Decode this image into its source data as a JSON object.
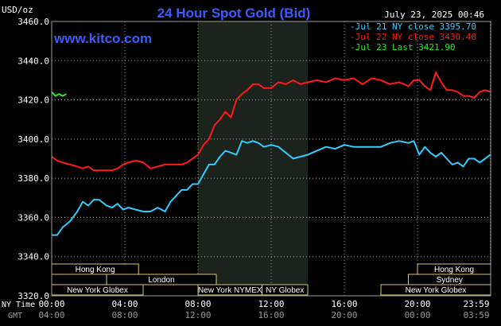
{
  "header": {
    "title": "24 Hour Spot Gold (Bid)",
    "units": "USD/oz",
    "site": "www.kitco.com",
    "timestamp": "July 23, 2025 00:46"
  },
  "legend": [
    {
      "label": "-Jul 21 NY close 3395.70",
      "color": "#33ccff"
    },
    {
      "label": "-Jul 22 NY close 3430.40",
      "color": "#ff1a1a"
    },
    {
      "label": "-Jul 23 Last 3421.90",
      "color": "#22ee22"
    }
  ],
  "colors": {
    "background": "#000000",
    "plot_bg": "#000000",
    "shade": "#1c221c",
    "grid": "#9aa09a",
    "text": "#ffffff",
    "title": "#3a5cff",
    "session_fill": "#000000",
    "session_border": "#d8c86a"
  },
  "axis_titles": {
    "ny_time": "NY Time",
    "gmt": "GMT"
  },
  "sessions": [
    {
      "label": "Hong Kong",
      "start": 0.0,
      "end": 4.75,
      "row": 0
    },
    {
      "label": "London",
      "start": 3.0,
      "end": 9.0,
      "row": 1
    },
    {
      "label": "New York Globex",
      "start": 0.0,
      "end": 5.0,
      "row": 2
    },
    {
      "label": "New York NYMEX",
      "start": 8.0,
      "end": 11.5,
      "row": 2
    },
    {
      "label": "NY Globex",
      "start": 11.5,
      "end": 14.0,
      "row": 2
    },
    {
      "label": "Hong Kong",
      "start": 20.0,
      "end": 24.0,
      "row": 0
    },
    {
      "label": "Sydney",
      "start": 19.5,
      "end": 24.0,
      "row": 1
    },
    {
      "label": "New York Globex",
      "start": 18.0,
      "end": 24.0,
      "row": 2
    }
  ],
  "chart_data": {
    "type": "line",
    "xlim": [
      0,
      24
    ],
    "ylim": [
      3320,
      3460
    ],
    "y_ticks": [
      3320,
      3340,
      3360,
      3380,
      3400,
      3420,
      3440,
      3460
    ],
    "y_tick_labels": [
      "3320.0",
      "3340.0",
      "3360.0",
      "3380.0",
      "3400.0",
      "3420.0",
      "3440.0",
      "3460.0"
    ],
    "x_ticks": [
      0,
      4,
      8,
      12,
      16,
      20,
      23.983
    ],
    "x_tick_labels_ny": [
      "00:00",
      "04:00",
      "08:00",
      "12:00",
      "16:00",
      "20:00",
      "23:59"
    ],
    "x_tick_labels_gmt": [
      "04:00",
      "08:00",
      "12:00",
      "16:00",
      "20:00",
      "00:00",
      "03:59"
    ],
    "shaded_range": [
      8,
      14
    ],
    "grid": true,
    "series": [
      {
        "name": "Jul 21 NY close 3395.70",
        "color": "#33ccff",
        "x": [
          0,
          0.3,
          0.6,
          1.0,
          1.4,
          1.7,
          2.0,
          2.3,
          2.6,
          3.0,
          3.3,
          3.6,
          3.9,
          4.2,
          4.6,
          5.0,
          5.4,
          5.8,
          6.2,
          6.5,
          6.8,
          7.1,
          7.4,
          7.7,
          8.0,
          8.3,
          8.6,
          8.9,
          9.2,
          9.5,
          9.8,
          10.1,
          10.4,
          10.7,
          11.0,
          11.3,
          11.6,
          12.0,
          12.4,
          12.8,
          13.2,
          13.6,
          14.0,
          14.5,
          15.0,
          15.5,
          16.0,
          16.5,
          17.0,
          17.5,
          18.0,
          18.5,
          19.0,
          19.5,
          19.8,
          20.1,
          20.4,
          20.7,
          21.0,
          21.3,
          21.6,
          21.9,
          22.2,
          22.5,
          22.8,
          23.1,
          23.4,
          23.7,
          23.983
        ],
        "y": [
          3351,
          3351,
          3355,
          3358,
          3363,
          3368,
          3366,
          3369,
          3369,
          3366,
          3365,
          3367,
          3364,
          3365,
          3364,
          3363,
          3363,
          3365,
          3363,
          3368,
          3371,
          3374,
          3374,
          3377,
          3377,
          3382,
          3387,
          3387,
          3391,
          3394,
          3393,
          3392,
          3399,
          3398,
          3399,
          3398,
          3396,
          3397,
          3396,
          3393,
          3390,
          3391,
          3392,
          3394,
          3396,
          3395,
          3397,
          3396,
          3396,
          3396,
          3396,
          3398,
          3399,
          3398,
          3399,
          3392,
          3396,
          3393,
          3391,
          3393,
          3390,
          3387,
          3388,
          3386,
          3390,
          3390,
          3388,
          3390,
          3392
        ]
      },
      {
        "name": "Jul 22 NY close 3430.40",
        "color": "#ff1a1a",
        "x": [
          0,
          0.3,
          0.6,
          1.0,
          1.4,
          1.7,
          2.0,
          2.3,
          2.6,
          3.0,
          3.3,
          3.6,
          3.9,
          4.2,
          4.6,
          5.0,
          5.4,
          5.8,
          6.2,
          6.5,
          6.8,
          7.1,
          7.4,
          7.7,
          8.0,
          8.3,
          8.6,
          8.9,
          9.2,
          9.5,
          9.8,
          10.1,
          10.4,
          10.7,
          11.0,
          11.3,
          11.6,
          12.0,
          12.4,
          12.8,
          13.2,
          13.6,
          14.0,
          14.5,
          15.0,
          15.5,
          16.0,
          16.5,
          17.0,
          17.5,
          18.0,
          18.5,
          19.0,
          19.5,
          19.8,
          20.1,
          20.4,
          20.7,
          21.0,
          21.3,
          21.6,
          21.9,
          22.2,
          22.5,
          22.8,
          23.1,
          23.4,
          23.7,
          23.983
        ],
        "y": [
          3391,
          3389,
          3388,
          3387,
          3386,
          3385,
          3386,
          3384,
          3384,
          3384,
          3384,
          3385,
          3387,
          3388,
          3389,
          3388,
          3385,
          3386,
          3387,
          3387,
          3387,
          3387,
          3388,
          3390,
          3392,
          3397,
          3400,
          3407,
          3410,
          3414,
          3411,
          3420,
          3423,
          3425,
          3428,
          3428,
          3426,
          3426,
          3429,
          3428,
          3430,
          3428,
          3429,
          3430,
          3429,
          3431,
          3430,
          3431,
          3428,
          3431,
          3430,
          3428,
          3429,
          3427,
          3430,
          3430,
          3427,
          3425,
          3434,
          3429,
          3425,
          3425,
          3424,
          3422,
          3422,
          3421,
          3424,
          3425,
          3424
        ]
      },
      {
        "name": "Jul 23 Last 3421.90",
        "color": "#22ee22",
        "x": [
          0,
          0.2,
          0.4,
          0.6,
          0.8
        ],
        "y": [
          3424,
          3422,
          3423,
          3422,
          3423
        ]
      }
    ]
  }
}
